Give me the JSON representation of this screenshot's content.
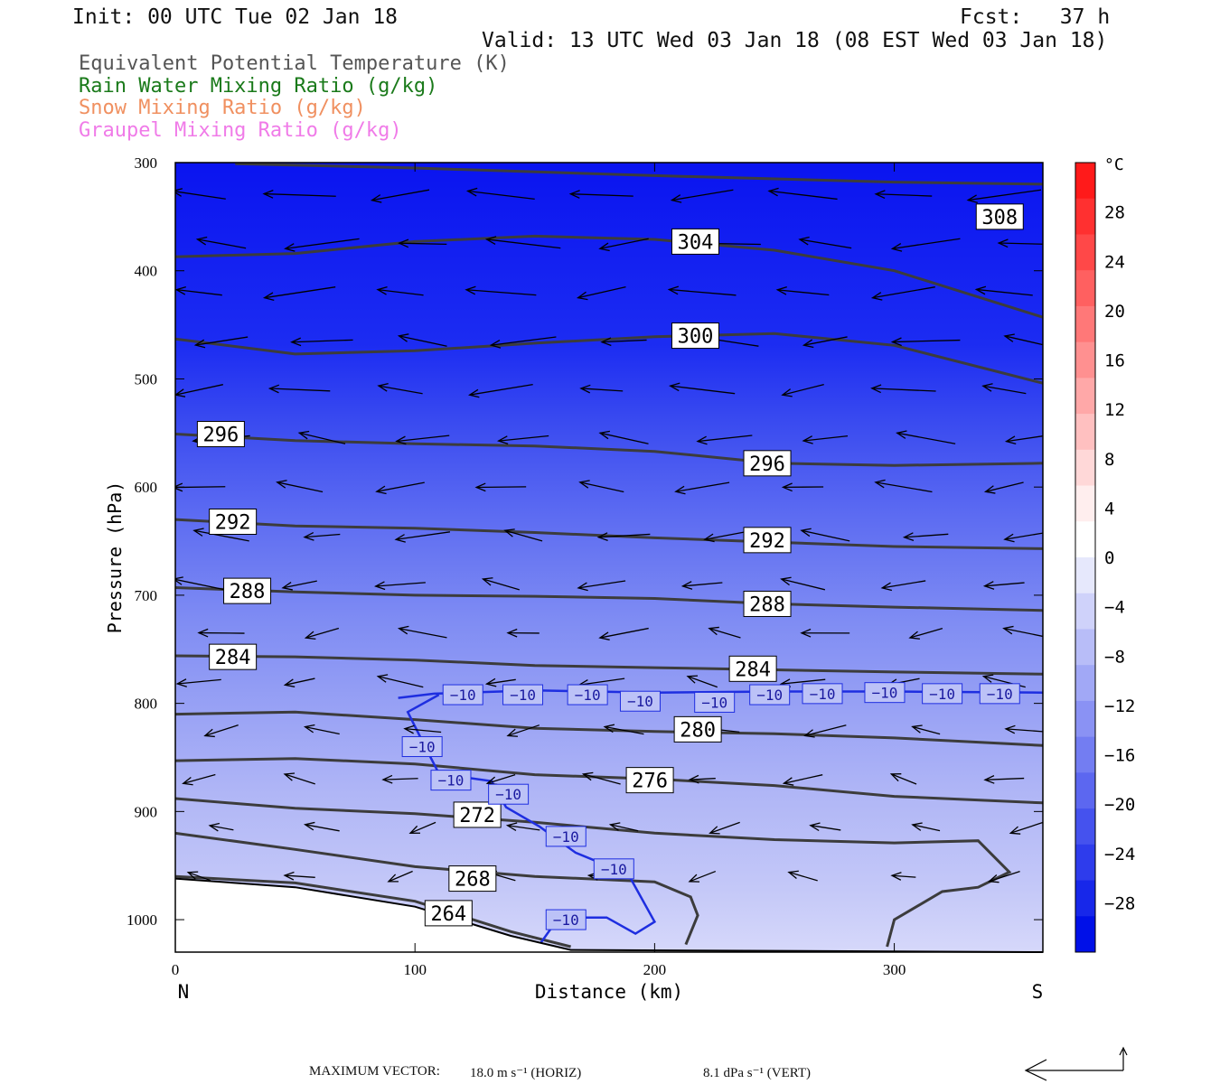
{
  "header": {
    "init": "Init: 00 UTC Tue 02 Jan 18",
    "fcst": "Fcst:   37 h",
    "valid": "Valid: 13 UTC Wed 03 Jan 18 (08 EST Wed 03 Jan 18)"
  },
  "legend": [
    {
      "text": "Equivalent Potential Temperature (K)",
      "color": "#555555"
    },
    {
      "text": "Rain Water Mixing Ratio (g/kg)",
      "color": "#1a7a1a"
    },
    {
      "text": "Snow Mixing Ratio (g/kg)",
      "color": "#f09060"
    },
    {
      "text": "Graupel Mixing Ratio (g/kg)",
      "color": "#f07be8"
    }
  ],
  "footer": {
    "label": "MAXIMUM VECTOR:",
    "horiz": "18.0 m s⁻¹ (HORIZ)",
    "vert": "8.1 dPa s⁻¹ (VERT)"
  },
  "chart_data": {
    "type": "cross-section",
    "xlabel": "Distance (km)",
    "ylabel": "Pressure (hPa)",
    "x_ticks": [
      "0",
      "100",
      "200",
      "300"
    ],
    "x_tick_values": [
      0,
      100,
      200,
      300
    ],
    "xlim": [
      0,
      362
    ],
    "x_end_labels": {
      "left": "N",
      "right": "S"
    },
    "y_ticks": [
      "300",
      "400",
      "500",
      "600",
      "700",
      "800",
      "900",
      "1000"
    ],
    "y_tick_values": [
      300,
      400,
      500,
      600,
      700,
      800,
      900,
      1000
    ],
    "ylim": [
      1030,
      300
    ],
    "colorbar": {
      "unit": "°C",
      "labels": [
        "28",
        "24",
        "20",
        "16",
        "12",
        "8",
        "4",
        "0",
        "-4",
        "-8",
        "-12",
        "-16",
        "-20",
        "-24",
        "-28"
      ],
      "values": [
        28,
        24,
        20,
        16,
        12,
        8,
        4,
        0,
        -4,
        -8,
        -12,
        -16,
        -20,
        -24,
        -28
      ]
    },
    "theta_e_contours": [
      {
        "label": "308",
        "points": [
          [
            25,
            301
          ],
          [
            100,
            305
          ],
          [
            200,
            312
          ],
          [
            300,
            318
          ],
          [
            362,
            320
          ]
        ],
        "labels_at": [
          [
            344,
            350
          ]
        ]
      },
      {
        "label": "304",
        "points": [
          [
            0,
            387
          ],
          [
            50,
            384
          ],
          [
            100,
            373
          ],
          [
            150,
            368
          ],
          [
            200,
            371
          ],
          [
            250,
            381
          ],
          [
            300,
            400
          ],
          [
            362,
            443
          ]
        ],
        "labels_at": [
          [
            217,
            373
          ]
        ]
      },
      {
        "label": "300",
        "points": [
          [
            0,
            463
          ],
          [
            50,
            477
          ],
          [
            100,
            474
          ],
          [
            150,
            467
          ],
          [
            200,
            461
          ],
          [
            250,
            458
          ],
          [
            300,
            469
          ],
          [
            362,
            504
          ]
        ],
        "labels_at": [
          [
            217,
            460
          ]
        ]
      },
      {
        "label": "296",
        "points": [
          [
            0,
            551
          ],
          [
            50,
            557
          ],
          [
            100,
            560
          ],
          [
            150,
            562
          ],
          [
            200,
            567
          ],
          [
            250,
            578
          ],
          [
            300,
            580
          ],
          [
            362,
            578
          ]
        ],
        "labels_at": [
          [
            19,
            551
          ],
          [
            247,
            578
          ]
        ]
      },
      {
        "label": "292",
        "points": [
          [
            0,
            630
          ],
          [
            50,
            636
          ],
          [
            100,
            638
          ],
          [
            150,
            642
          ],
          [
            200,
            647
          ],
          [
            250,
            651
          ],
          [
            300,
            655
          ],
          [
            362,
            657
          ]
        ],
        "labels_at": [
          [
            24,
            632
          ],
          [
            247,
            649
          ]
        ]
      },
      {
        "label": "288",
        "points": [
          [
            0,
            693
          ],
          [
            50,
            697
          ],
          [
            100,
            700
          ],
          [
            150,
            701
          ],
          [
            200,
            703
          ],
          [
            250,
            708
          ],
          [
            300,
            711
          ],
          [
            362,
            714
          ]
        ],
        "labels_at": [
          [
            30,
            696
          ],
          [
            247,
            708
          ]
        ]
      },
      {
        "label": "284",
        "points": [
          [
            0,
            756
          ],
          [
            50,
            757
          ],
          [
            100,
            760
          ],
          [
            150,
            765
          ],
          [
            200,
            767
          ],
          [
            250,
            769
          ],
          [
            300,
            771
          ],
          [
            362,
            773
          ]
        ],
        "labels_at": [
          [
            24,
            757
          ],
          [
            241,
            768
          ]
        ]
      },
      {
        "label": "280",
        "points": [
          [
            0,
            810
          ],
          [
            50,
            808
          ],
          [
            100,
            815
          ],
          [
            150,
            823
          ],
          [
            200,
            826
          ],
          [
            250,
            828
          ],
          [
            300,
            832
          ],
          [
            362,
            839
          ]
        ],
        "labels_at": [
          [
            218,
            824
          ]
        ]
      },
      {
        "label": "276",
        "points": [
          [
            0,
            853
          ],
          [
            50,
            851
          ],
          [
            100,
            856
          ],
          [
            150,
            866
          ],
          [
            200,
            870
          ],
          [
            250,
            876
          ],
          [
            300,
            886
          ],
          [
            362,
            892
          ]
        ],
        "labels_at": [
          [
            198,
            871
          ]
        ]
      },
      {
        "label": "272",
        "points": [
          [
            0,
            888
          ],
          [
            50,
            897
          ],
          [
            100,
            902
          ],
          [
            150,
            910
          ],
          [
            200,
            920
          ],
          [
            250,
            926
          ],
          [
            300,
            929
          ],
          [
            335,
            927
          ],
          [
            348,
            956
          ],
          [
            335,
            970
          ],
          [
            320,
            974
          ],
          [
            300,
            1000
          ],
          [
            297,
            1025
          ]
        ],
        "labels_at": [
          [
            126,
            903
          ]
        ]
      },
      {
        "label": "268",
        "points": [
          [
            0,
            920
          ],
          [
            50,
            935
          ],
          [
            100,
            951
          ],
          [
            150,
            960
          ],
          [
            200,
            965
          ],
          [
            215,
            979
          ],
          [
            218,
            996
          ],
          [
            213,
            1023
          ]
        ],
        "labels_at": [
          [
            124,
            962
          ]
        ]
      },
      {
        "label": "264",
        "points": [
          [
            0,
            960
          ],
          [
            50,
            966
          ],
          [
            100,
            983
          ],
          [
            140,
            1011
          ],
          [
            165,
            1025
          ]
        ],
        "labels_at": [
          [
            114,
            994
          ]
        ]
      }
    ],
    "isotherm_minus10": {
      "label": "-10",
      "points": [
        [
          93,
          795
        ],
        [
          108,
          791
        ],
        [
          150,
          788
        ],
        [
          200,
          790
        ],
        [
          250,
          789
        ],
        [
          300,
          789
        ],
        [
          362,
          790
        ],
        [
          110,
          792
        ],
        [
          97,
          808
        ],
        [
          104,
          839
        ],
        [
          110,
          865
        ],
        [
          132,
          872
        ],
        [
          138,
          896
        ],
        [
          152,
          914
        ],
        [
          167,
          938
        ],
        [
          189,
          958
        ],
        [
          200,
          1002
        ],
        [
          192,
          1013
        ],
        [
          180,
          998
        ],
        [
          160,
          998
        ],
        [
          152,
          1023
        ]
      ],
      "labels_at": [
        [
          120,
          792
        ],
        [
          145,
          792
        ],
        [
          172,
          792
        ],
        [
          194,
          798
        ],
        [
          225,
          799
        ],
        [
          248,
          792
        ],
        [
          270,
          791
        ],
        [
          296,
          790
        ],
        [
          320,
          791
        ],
        [
          344,
          791
        ],
        [
          103,
          840
        ],
        [
          115,
          871
        ],
        [
          139,
          884
        ],
        [
          163,
          923
        ],
        [
          183,
          953
        ],
        [
          163,
          1000
        ]
      ]
    }
  }
}
